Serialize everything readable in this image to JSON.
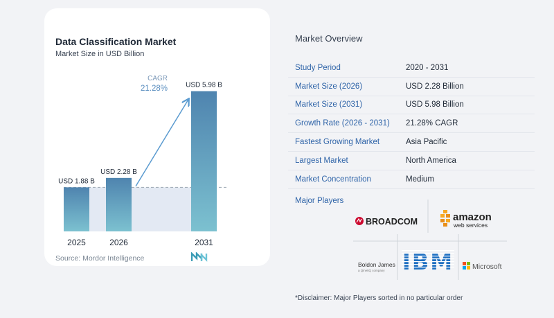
{
  "chart": {
    "title": "Data Classification Market",
    "subtitle": "Market Size in USD Billion",
    "source": "Source:  Mordor Intelligence",
    "cagr_label": "CAGR",
    "cagr_value": "21.28%"
  },
  "chart_data": {
    "type": "bar",
    "title": "Data Classification Market",
    "subtitle": "Market Size in USD Billion",
    "categories": [
      "2025",
      "2026",
      "2031"
    ],
    "values": [
      1.88,
      2.28,
      5.98
    ],
    "value_labels": [
      "USD 1.88 B",
      "USD 2.28 B",
      "USD 5.98 B"
    ],
    "ylim": [
      0,
      6.5
    ],
    "annotation": "CAGR 21.28%",
    "colors": {
      "bar_top": "#4f84af",
      "bar_bottom": "#7cc1d0",
      "band": "#e3e9f3",
      "accent": "#5b9bd0"
    }
  },
  "overview": {
    "title": "Market Overview",
    "rows": [
      {
        "key": "Study Period",
        "value": "2020 - 2031"
      },
      {
        "key": "Market Size (2026)",
        "value": "USD 2.28 Billion"
      },
      {
        "key": "Market Size (2031)",
        "value": "USD 5.98 Billion"
      },
      {
        "key": "Growth Rate (2026 - 2031)",
        "value": "21.28% CAGR"
      },
      {
        "key": "Fastest Growing Market",
        "value": "Asia Pacific"
      },
      {
        "key": "Largest Market",
        "value": "North America"
      },
      {
        "key": "Market Concentration",
        "value": "Medium"
      }
    ]
  },
  "players": {
    "title": "Major Players",
    "broadcom": "BROADCOM",
    "amazon": "amazon",
    "amazon_sub": "web services",
    "boldon": "Boldon James",
    "boldon_sub": "a QinetiQ company",
    "ibm": "IBM",
    "microsoft": "Microsoft"
  },
  "disclaimer": "*Disclaimer: Major Players sorted in no particular order"
}
